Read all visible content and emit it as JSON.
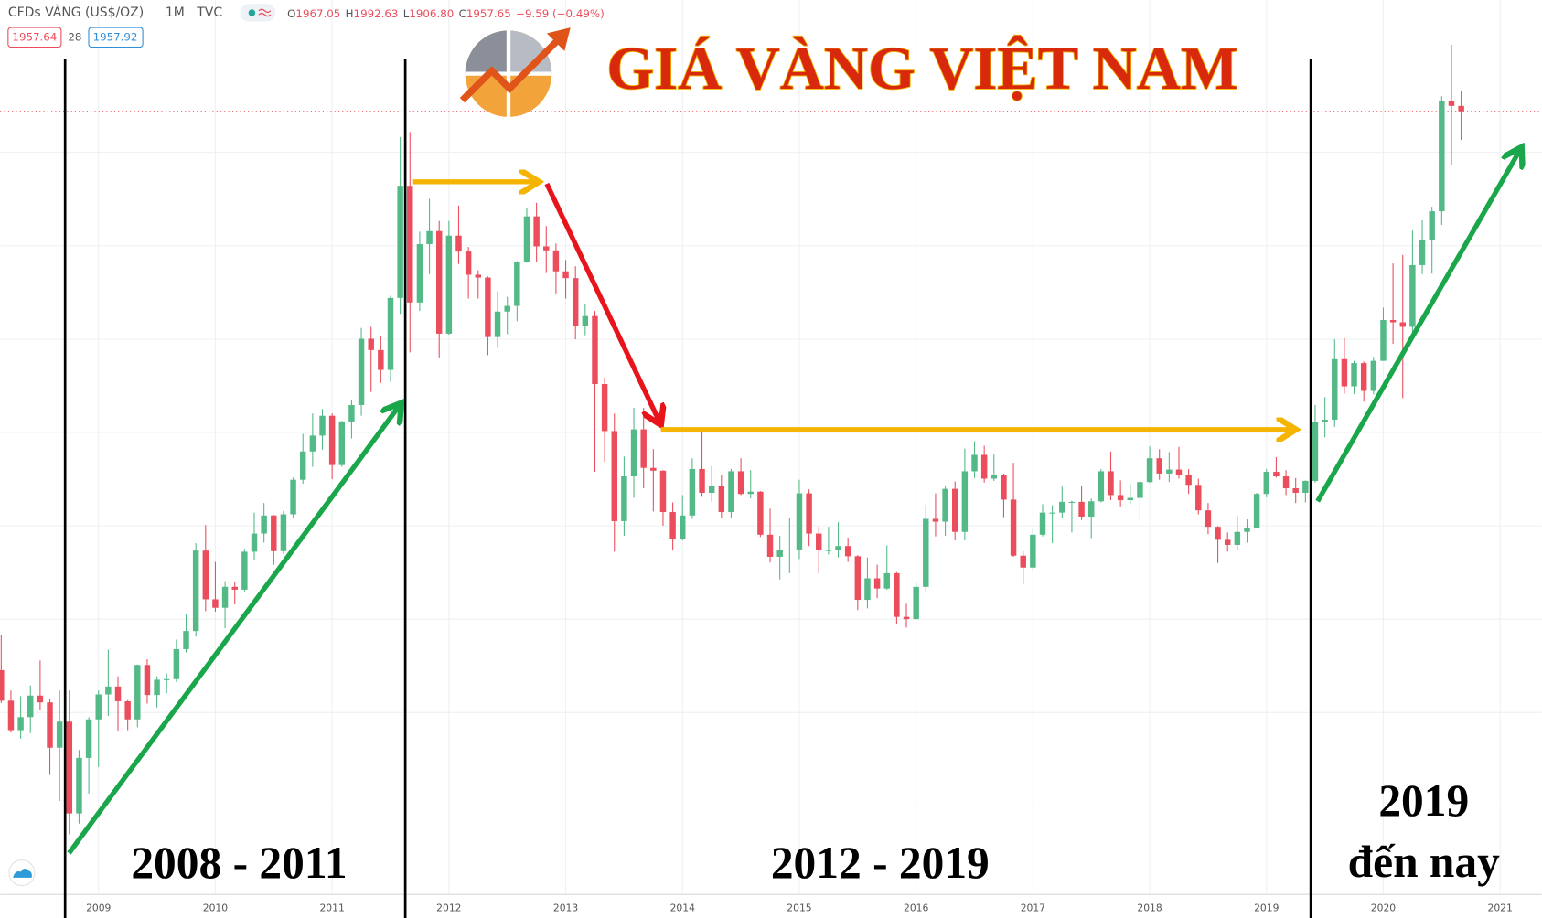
{
  "header": {
    "symbol": "CFDs VÀNG (US$/OZ)",
    "interval": "1M",
    "source": "TVC",
    "open_label": "O",
    "open": "1967.05",
    "high_label": "H",
    "high": "1992.63",
    "low_label": "L",
    "low": "1906.80",
    "close_label": "C",
    "close": "1957.65",
    "change": "−9.59 (−0.49%)",
    "spread": "28",
    "ask": "1957.92"
  },
  "chart_data": {
    "type": "candlestick",
    "title": "GIÁ VÀNG VIỆT NAM",
    "annotations": [
      "2008 - 2011",
      "2012 - 2019",
      "2019",
      "đến nay"
    ],
    "up_color": "#53b987",
    "down_color": "#eb4d5c",
    "price_line": 1957.64,
    "ylim": [
      575,
      2154
    ],
    "categories": [
      null,
      null,
      null,
      null,
      null,
      null,
      null,
      null,
      null,
      null,
      "2009",
      null,
      null,
      null,
      null,
      null,
      null,
      null,
      null,
      null,
      null,
      null,
      "2010",
      null,
      null,
      null,
      null,
      null,
      null,
      null,
      null,
      null,
      null,
      null,
      "2011",
      null,
      null,
      null,
      null,
      null,
      null,
      null,
      null,
      null,
      null,
      null,
      "2012",
      null,
      null,
      null,
      null,
      null,
      null,
      null,
      null,
      null,
      null,
      null,
      "2013",
      null,
      null,
      null,
      null,
      null,
      null,
      null,
      null,
      null,
      null,
      null,
      "2014",
      null,
      null,
      null,
      null,
      null,
      null,
      null,
      null,
      null,
      null,
      null,
      "2015",
      null,
      null,
      null,
      null,
      null,
      null,
      null,
      null,
      null,
      null,
      null,
      "2016",
      null,
      null,
      null,
      null,
      null,
      null,
      null,
      null,
      null,
      null,
      null,
      "2017",
      null,
      null,
      null,
      null,
      null,
      null,
      null,
      null,
      null,
      null,
      null,
      "2018",
      null,
      null,
      null,
      null,
      null,
      null,
      null,
      null,
      null,
      null,
      null,
      "2019",
      null,
      null,
      null,
      null,
      null,
      null,
      null,
      null,
      null,
      null,
      null,
      "2020",
      null,
      null,
      null,
      null,
      null,
      null,
      null,
      null,
      null,
      null,
      null,
      "2021"
    ],
    "ohlc": [
      [
        971,
        1033,
        913,
        917
      ],
      [
        917,
        935,
        861,
        865
      ],
      [
        865,
        925,
        850,
        888
      ],
      [
        888,
        944,
        860,
        926
      ],
      [
        926,
        988,
        900,
        914
      ],
      [
        914,
        920,
        786,
        834
      ],
      [
        834,
        935,
        740,
        880
      ],
      [
        880,
        935,
        681,
        718
      ],
      [
        718,
        830,
        700,
        816
      ],
      [
        816,
        888,
        753,
        884
      ],
      [
        884,
        935,
        800,
        928
      ],
      [
        928,
        1007,
        890,
        942
      ],
      [
        942,
        960,
        864,
        916
      ],
      [
        916,
        918,
        865,
        884
      ],
      [
        884,
        981,
        870,
        980
      ],
      [
        980,
        990,
        912,
        927
      ],
      [
        927,
        960,
        905,
        954
      ],
      [
        954,
        965,
        930,
        955
      ],
      [
        955,
        1025,
        950,
        1008
      ],
      [
        1008,
        1070,
        1002,
        1040
      ],
      [
        1040,
        1195,
        1030,
        1182
      ],
      [
        1182,
        1227,
        1075,
        1096
      ],
      [
        1096,
        1162,
        1074,
        1081
      ],
      [
        1081,
        1128,
        1045,
        1118
      ],
      [
        1118,
        1127,
        1087,
        1113
      ],
      [
        1113,
        1185,
        1110,
        1180
      ],
      [
        1180,
        1249,
        1165,
        1212
      ],
      [
        1212,
        1266,
        1196,
        1244
      ],
      [
        1244,
        1245,
        1157,
        1181
      ],
      [
        1181,
        1252,
        1176,
        1246
      ],
      [
        1246,
        1311,
        1240,
        1307
      ],
      [
        1307,
        1388,
        1300,
        1357
      ],
      [
        1357,
        1424,
        1330,
        1385
      ],
      [
        1385,
        1432,
        1360,
        1420
      ],
      [
        1420,
        1424,
        1308,
        1333
      ],
      [
        1333,
        1411,
        1330,
        1410
      ],
      [
        1410,
        1447,
        1380,
        1439
      ],
      [
        1439,
        1575,
        1420,
        1556
      ],
      [
        1556,
        1577,
        1462,
        1536
      ],
      [
        1536,
        1560,
        1478,
        1501
      ],
      [
        1501,
        1632,
        1480,
        1628
      ],
      [
        1628,
        1912,
        1600,
        1826
      ],
      [
        1826,
        1921,
        1532,
        1620
      ],
      [
        1620,
        1745,
        1605,
        1723
      ],
      [
        1723,
        1803,
        1670,
        1746
      ],
      [
        1746,
        1764,
        1523,
        1565
      ],
      [
        1565,
        1764,
        1563,
        1738
      ],
      [
        1738,
        1791,
        1688,
        1710
      ],
      [
        1710,
        1718,
        1627,
        1669
      ],
      [
        1669,
        1677,
        1627,
        1664
      ],
      [
        1664,
        1666,
        1527,
        1559
      ],
      [
        1559,
        1640,
        1540,
        1604
      ],
      [
        1604,
        1630,
        1564,
        1614
      ],
      [
        1614,
        1693,
        1587,
        1692
      ],
      [
        1692,
        1787,
        1690,
        1772
      ],
      [
        1772,
        1796,
        1692,
        1719
      ],
      [
        1719,
        1755,
        1672,
        1712
      ],
      [
        1712,
        1724,
        1636,
        1675
      ],
      [
        1675,
        1695,
        1627,
        1663
      ],
      [
        1663,
        1684,
        1555,
        1578
      ],
      [
        1578,
        1617,
        1562,
        1596
      ],
      [
        1596,
        1605,
        1321,
        1476
      ],
      [
        1476,
        1488,
        1338,
        1393
      ],
      [
        1393,
        1424,
        1180,
        1234
      ],
      [
        1234,
        1348,
        1208,
        1313
      ],
      [
        1313,
        1434,
        1275,
        1396
      ],
      [
        1396,
        1434,
        1292,
        1328
      ],
      [
        1328,
        1361,
        1251,
        1323
      ],
      [
        1323,
        1324,
        1226,
        1250
      ],
      [
        1250,
        1267,
        1182,
        1202
      ],
      [
        1202,
        1280,
        1200,
        1244
      ],
      [
        1244,
        1345,
        1238,
        1326
      ],
      [
        1326,
        1392,
        1277,
        1284
      ],
      [
        1284,
        1331,
        1268,
        1296
      ],
      [
        1296,
        1315,
        1240,
        1250
      ],
      [
        1250,
        1326,
        1240,
        1322
      ],
      [
        1322,
        1345,
        1280,
        1282
      ],
      [
        1282,
        1324,
        1274,
        1286
      ],
      [
        1286,
        1287,
        1206,
        1210
      ],
      [
        1210,
        1256,
        1161,
        1171
      ],
      [
        1171,
        1208,
        1131,
        1183
      ],
      [
        1183,
        1239,
        1142,
        1184
      ],
      [
        1184,
        1307,
        1167,
        1283
      ],
      [
        1283,
        1290,
        1190,
        1212
      ],
      [
        1212,
        1224,
        1142,
        1183
      ],
      [
        1183,
        1224,
        1175,
        1183
      ],
      [
        1183,
        1232,
        1170,
        1190
      ],
      [
        1190,
        1205,
        1162,
        1172
      ],
      [
        1172,
        1174,
        1077,
        1095
      ],
      [
        1095,
        1170,
        1080,
        1133
      ],
      [
        1133,
        1157,
        1098,
        1115
      ],
      [
        1115,
        1191,
        1113,
        1142
      ],
      [
        1142,
        1144,
        1052,
        1065
      ],
      [
        1065,
        1088,
        1046,
        1061
      ],
      [
        1061,
        1125,
        1061,
        1118
      ],
      [
        1118,
        1263,
        1110,
        1238
      ],
      [
        1238,
        1283,
        1207,
        1233
      ],
      [
        1233,
        1297,
        1208,
        1291
      ],
      [
        1291,
        1304,
        1200,
        1215
      ],
      [
        1215,
        1362,
        1200,
        1322
      ],
      [
        1322,
        1375,
        1310,
        1351
      ],
      [
        1351,
        1367,
        1302,
        1309
      ],
      [
        1309,
        1352,
        1305,
        1316
      ],
      [
        1316,
        1318,
        1241,
        1272
      ],
      [
        1272,
        1337,
        1171,
        1173
      ],
      [
        1173,
        1181,
        1122,
        1152
      ],
      [
        1152,
        1220,
        1146,
        1210
      ],
      [
        1210,
        1264,
        1207,
        1249
      ],
      [
        1249,
        1262,
        1195,
        1249
      ],
      [
        1249,
        1295,
        1240,
        1268
      ],
      [
        1268,
        1270,
        1214,
        1268
      ],
      [
        1268,
        1296,
        1236,
        1242
      ],
      [
        1242,
        1274,
        1204,
        1269
      ],
      [
        1269,
        1326,
        1267,
        1322
      ],
      [
        1322,
        1357,
        1271,
        1280
      ],
      [
        1280,
        1306,
        1260,
        1271
      ],
      [
        1271,
        1299,
        1264,
        1275
      ],
      [
        1275,
        1306,
        1236,
        1303
      ],
      [
        1303,
        1366,
        1302,
        1345
      ],
      [
        1345,
        1361,
        1307,
        1318
      ],
      [
        1318,
        1356,
        1303,
        1325
      ],
      [
        1325,
        1365,
        1309,
        1315
      ],
      [
        1315,
        1326,
        1282,
        1298
      ],
      [
        1298,
        1309,
        1246,
        1253
      ],
      [
        1253,
        1266,
        1211,
        1224
      ],
      [
        1224,
        1225,
        1160,
        1201
      ],
      [
        1201,
        1214,
        1180,
        1192
      ],
      [
        1192,
        1243,
        1182,
        1215
      ],
      [
        1215,
        1237,
        1196,
        1222
      ],
      [
        1222,
        1284,
        1221,
        1282
      ],
      [
        1282,
        1326,
        1276,
        1321
      ],
      [
        1321,
        1347,
        1311,
        1313
      ],
      [
        1313,
        1324,
        1280,
        1292
      ],
      [
        1292,
        1310,
        1266,
        1284
      ],
      [
        1284,
        1306,
        1267,
        1305
      ],
      [
        1305,
        1439,
        1302,
        1409
      ],
      [
        1409,
        1453,
        1382,
        1413
      ],
      [
        1413,
        1555,
        1400,
        1520
      ],
      [
        1520,
        1557,
        1459,
        1472
      ],
      [
        1472,
        1517,
        1458,
        1513
      ],
      [
        1513,
        1516,
        1445,
        1464
      ],
      [
        1464,
        1524,
        1458,
        1517
      ],
      [
        1517,
        1611,
        1517,
        1589
      ],
      [
        1589,
        1689,
        1547,
        1585
      ],
      [
        1585,
        1704,
        1451,
        1577
      ],
      [
        1577,
        1747,
        1567,
        1686
      ],
      [
        1686,
        1765,
        1670,
        1730
      ],
      [
        1730,
        1789,
        1671,
        1781
      ],
      [
        1781,
        1984,
        1757,
        1975
      ],
      [
        1975,
        2075,
        1863,
        1967.05
      ],
      [
        1967.05,
        1992.63,
        1906.8,
        1957.65
      ],
      null,
      null,
      null,
      null
    ]
  }
}
